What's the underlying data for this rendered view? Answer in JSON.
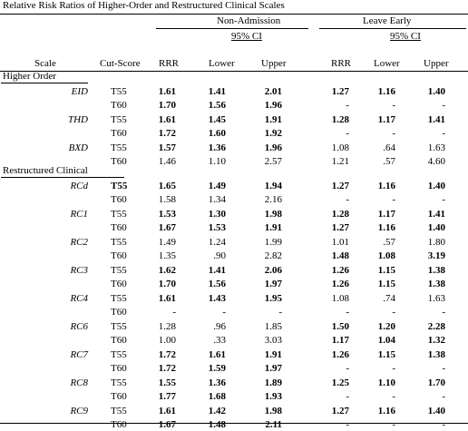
{
  "title": "Relative Risk Ratios of Higher-Order and Restructured Clinical Scales",
  "groups": [
    {
      "label": "Non-Admission",
      "ci_label": "95% CI"
    },
    {
      "label": "Leave Early",
      "ci_label": "95% CI"
    }
  ],
  "headers": {
    "scale": "Scale",
    "cutscore": "Cut-Score",
    "rrr": "RRR",
    "lower": "Lower",
    "upper": "Upper"
  },
  "sections": [
    {
      "label": "Higher Order",
      "scales": [
        {
          "name": "EID",
          "rows": [
            {
              "cut": "T55",
              "cells": [
                [
                  "1.61",
                  1
                ],
                [
                  "1.41",
                  1
                ],
                [
                  "2.01",
                  1
                ],
                [
                  "1.27",
                  1
                ],
                [
                  "1.16",
                  1
                ],
                [
                  "1.40",
                  1
                ]
              ]
            },
            {
              "cut": "T60",
              "cells": [
                [
                  "1.70",
                  1
                ],
                [
                  "1.56",
                  1
                ],
                [
                  "1.96",
                  1
                ],
                [
                  "-",
                  0
                ],
                [
                  "-",
                  0
                ],
                [
                  "-",
                  0
                ]
              ]
            }
          ]
        },
        {
          "name": "THD",
          "rows": [
            {
              "cut": "T55",
              "cells": [
                [
                  "1.61",
                  1
                ],
                [
                  "1.45",
                  1
                ],
                [
                  "1.91",
                  1
                ],
                [
                  "1.28",
                  1
                ],
                [
                  "1.17",
                  1
                ],
                [
                  "1.41",
                  1
                ]
              ]
            },
            {
              "cut": "T60",
              "cells": [
                [
                  "1.72",
                  1
                ],
                [
                  "1.60",
                  1
                ],
                [
                  "1.92",
                  1
                ],
                [
                  "-",
                  0
                ],
                [
                  "-",
                  0
                ],
                [
                  "-",
                  0
                ]
              ]
            }
          ]
        },
        {
          "name": "BXD",
          "rows": [
            {
              "cut": "T55",
              "cells": [
                [
                  "1.57",
                  1
                ],
                [
                  "1.36",
                  1
                ],
                [
                  "1.96",
                  1
                ],
                [
                  "1.08",
                  0
                ],
                [
                  ".64",
                  0
                ],
                [
                  "1.63",
                  0
                ]
              ]
            },
            {
              "cut": "T60",
              "cells": [
                [
                  "1.46",
                  0
                ],
                [
                  "1.10",
                  0
                ],
                [
                  "2.57",
                  0
                ],
                [
                  "1.21",
                  0
                ],
                [
                  ".57",
                  0
                ],
                [
                  "4.60",
                  0
                ]
              ]
            }
          ]
        }
      ]
    },
    {
      "label": "Restructured Clinical",
      "scales": [
        {
          "name": "RCd",
          "rows": [
            {
              "cut": "T55",
              "cells": [
                [
                  "1.65",
                  1
                ],
                [
                  "1.49",
                  1
                ],
                [
                  "1.94",
                  1
                ],
                [
                  "1.27",
                  1
                ],
                [
                  "1.16",
                  1
                ],
                [
                  "1.40",
                  1
                ]
              ]
            },
            {
              "cut": "T60",
              "cells": [
                [
                  "1.58",
                  0
                ],
                [
                  "1.34",
                  0
                ],
                [
                  "2.16",
                  0
                ],
                [
                  "-",
                  0
                ],
                [
                  "-",
                  0
                ],
                [
                  "-",
                  0
                ]
              ]
            }
          ]
        },
        {
          "name": "RC1",
          "rows": [
            {
              "cut": "T55",
              "cells": [
                [
                  "1.53",
                  1
                ],
                [
                  "1.30",
                  1
                ],
                [
                  "1.98",
                  1
                ],
                [
                  "1.28",
                  1
                ],
                [
                  "1.17",
                  1
                ],
                [
                  "1.41",
                  1
                ]
              ]
            },
            {
              "cut": "T60",
              "cells": [
                [
                  "1.67",
                  1
                ],
                [
                  "1.53",
                  1
                ],
                [
                  "1.91",
                  1
                ],
                [
                  "1.27",
                  1
                ],
                [
                  "1.16",
                  1
                ],
                [
                  "1.40",
                  1
                ]
              ]
            }
          ]
        },
        {
          "name": "RC2",
          "rows": [
            {
              "cut": "T55",
              "cells": [
                [
                  "1.49",
                  0
                ],
                [
                  "1.24",
                  0
                ],
                [
                  "1.99",
                  0
                ],
                [
                  "1.01",
                  0
                ],
                [
                  ".57",
                  0
                ],
                [
                  "1.80",
                  0
                ]
              ]
            },
            {
              "cut": "T60",
              "cells": [
                [
                  "1.35",
                  0
                ],
                [
                  ".90",
                  0
                ],
                [
                  "2.82",
                  0
                ],
                [
                  "1.48",
                  1
                ],
                [
                  "1.08",
                  1
                ],
                [
                  "3.19",
                  1
                ]
              ]
            }
          ]
        },
        {
          "name": "RC3",
          "rows": [
            {
              "cut": "T55",
              "cells": [
                [
                  "1.62",
                  1
                ],
                [
                  "1.41",
                  1
                ],
                [
                  "2.06",
                  1
                ],
                [
                  "1.26",
                  1
                ],
                [
                  "1.15",
                  1
                ],
                [
                  "1.38",
                  1
                ]
              ]
            },
            {
              "cut": "T60",
              "cells": [
                [
                  "1.70",
                  1
                ],
                [
                  "1.56",
                  1
                ],
                [
                  "1.97",
                  1
                ],
                [
                  "1.26",
                  1
                ],
                [
                  "1.15",
                  1
                ],
                [
                  "1.38",
                  1
                ]
              ]
            }
          ]
        },
        {
          "name": "RC4",
          "rows": [
            {
              "cut": "T55",
              "cells": [
                [
                  "1.61",
                  1
                ],
                [
                  "1.43",
                  1
                ],
                [
                  "1.95",
                  1
                ],
                [
                  "1.08",
                  0
                ],
                [
                  ".74",
                  0
                ],
                [
                  "1.63",
                  0
                ]
              ]
            },
            {
              "cut": "T60",
              "cells": [
                [
                  "-",
                  0
                ],
                [
                  "-",
                  0
                ],
                [
                  "-",
                  0
                ],
                [
                  "-",
                  0
                ],
                [
                  "-",
                  0
                ],
                [
                  "-",
                  0
                ]
              ]
            }
          ]
        },
        {
          "name": "RC6",
          "rows": [
            {
              "cut": "T55",
              "cells": [
                [
                  "1.28",
                  0
                ],
                [
                  ".96",
                  0
                ],
                [
                  "1.85",
                  0
                ],
                [
                  "1.50",
                  1
                ],
                [
                  "1.20",
                  1
                ],
                [
                  "2.28",
                  1
                ]
              ]
            },
            {
              "cut": "T60",
              "cells": [
                [
                  "1.00",
                  0
                ],
                [
                  ".33",
                  0
                ],
                [
                  "3.03",
                  0
                ],
                [
                  "1.17",
                  1
                ],
                [
                  "1.04",
                  1
                ],
                [
                  "1.32",
                  1
                ]
              ]
            }
          ]
        },
        {
          "name": "RC7",
          "rows": [
            {
              "cut": "T55",
              "cells": [
                [
                  "1.72",
                  1
                ],
                [
                  "1.61",
                  1
                ],
                [
                  "1.91",
                  1
                ],
                [
                  "1.26",
                  1
                ],
                [
                  "1.15",
                  1
                ],
                [
                  "1.38",
                  1
                ]
              ]
            },
            {
              "cut": "T60",
              "cells": [
                [
                  "1.72",
                  1
                ],
                [
                  "1.59",
                  1
                ],
                [
                  "1.97",
                  1
                ],
                [
                  "-",
                  0
                ],
                [
                  "-",
                  0
                ],
                [
                  "-",
                  0
                ]
              ]
            }
          ]
        },
        {
          "name": "RC8",
          "rows": [
            {
              "cut": "T55",
              "cells": [
                [
                  "1.55",
                  1
                ],
                [
                  "1.36",
                  1
                ],
                [
                  "1.89",
                  1
                ],
                [
                  "1.25",
                  1
                ],
                [
                  "1.10",
                  1
                ],
                [
                  "1.70",
                  1
                ]
              ]
            },
            {
              "cut": "T60",
              "cells": [
                [
                  "1.77",
                  1
                ],
                [
                  "1.68",
                  1
                ],
                [
                  "1.93",
                  1
                ],
                [
                  "-",
                  0
                ],
                [
                  "-",
                  0
                ],
                [
                  "-",
                  0
                ]
              ]
            }
          ]
        },
        {
          "name": "RC9",
          "rows": [
            {
              "cut": "T55",
              "cells": [
                [
                  "1.61",
                  1
                ],
                [
                  "1.42",
                  1
                ],
                [
                  "1.98",
                  1
                ],
                [
                  "1.27",
                  1
                ],
                [
                  "1.16",
                  1
                ],
                [
                  "1.40",
                  1
                ]
              ]
            },
            {
              "cut": "T60",
              "cells": [
                [
                  "1.67",
                  1
                ],
                [
                  "1.48",
                  1
                ],
                [
                  "2.11",
                  1
                ],
                [
                  "-",
                  0
                ],
                [
                  "-",
                  0
                ],
                [
                  "-",
                  0
                ]
              ]
            }
          ]
        }
      ]
    }
  ]
}
